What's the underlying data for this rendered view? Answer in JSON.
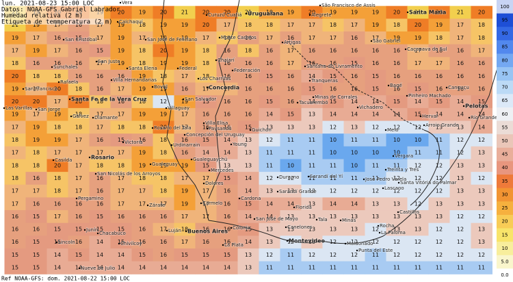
{
  "header": {
    "lines": [
      "lun. 2021-08-23 15:00 LOC",
      "Datos: NOAA-GFS  Gabriel Labrador",
      "Humedad relativa (2 m)",
      "Etiqueta de temmperatura (2 m)"
    ]
  },
  "footer": "Ref NOAA-GFS: dom. 2021-08-22 15:00 LOC",
  "legend": {
    "items": [
      {
        "label": "100",
        "color": "#c8d4f4"
      },
      {
        "label": "95",
        "color": "#1e4fd6"
      },
      {
        "label": "90",
        "color": "#3468e4"
      },
      {
        "label": "85",
        "color": "#5288ee"
      },
      {
        "label": "80",
        "color": "#74a8f2"
      },
      {
        "label": "75",
        "color": "#98c4f4"
      },
      {
        "label": "70",
        "color": "#bcdaf6"
      },
      {
        "label": "65",
        "color": "#dce9f8"
      },
      {
        "label": "60",
        "color": "#eef0f4"
      },
      {
        "label": "55",
        "color": "#ebdcd6"
      },
      {
        "label": "50",
        "color": "#eac6b8"
      },
      {
        "label": "45",
        "color": "#e9ae9a"
      },
      {
        "label": "40",
        "color": "#e8967e"
      },
      {
        "label": "35",
        "color": "#ee7a3a"
      },
      {
        "label": "30",
        "color": "#f29432"
      },
      {
        "label": "25",
        "color": "#f6b03e"
      },
      {
        "label": "20",
        "color": "#f8cc56"
      },
      {
        "label": "15",
        "color": "#f8e46a"
      },
      {
        "label": "10",
        "color": "#f8ee9c"
      },
      {
        "label": "5.0",
        "color": "#faf6cc"
      },
      {
        "label": "0.0",
        "color": "#ffffff"
      }
    ]
  },
  "temperatures": [
    [
      21,
      19,
      20,
      20,
      19,
      20,
      19,
      20,
      21,
      20,
      20,
      21,
      19,
      19,
      20,
      19,
      19,
      19,
      20,
      21,
      20,
      21,
      20
    ],
    [
      21,
      19,
      17,
      16,
      17,
      19,
      18,
      19,
      19,
      20,
      17,
      18,
      18,
      17,
      17,
      18,
      17,
      19,
      18,
      20,
      19,
      17,
      18
    ],
    [
      19,
      17,
      16,
      15,
      17,
      19,
      17,
      19,
      19,
      17,
      18,
      16,
      17,
      16,
      17,
      17,
      16,
      17,
      19,
      19,
      18,
      17,
      18
    ],
    [
      17,
      19,
      17,
      16,
      15,
      19,
      18,
      20,
      19,
      18,
      16,
      18,
      16,
      17,
      16,
      16,
      16,
      16,
      16,
      17,
      16,
      16,
      17
    ],
    [
      18,
      16,
      16,
      16,
      17,
      19,
      18,
      19,
      19,
      18,
      16,
      16,
      16,
      17,
      16,
      16,
      15,
      16,
      16,
      17,
      17,
      16,
      16
    ],
    [
      20,
      18,
      18,
      16,
      16,
      16,
      19,
      18,
      17,
      18,
      16,
      16,
      15,
      16,
      14,
      15,
      16,
      15,
      16,
      16,
      16,
      16,
      16
    ],
    [
      19,
      17,
      20,
      18,
      16,
      17,
      19,
      19,
      16,
      17,
      17,
      16,
      16,
      16,
      15,
      16,
      16,
      15,
      16,
      15,
      16,
      16,
      16
    ],
    [
      20,
      20,
      17,
      20,
      18,
      16,
      18,
      12,
      19,
      15,
      16,
      16,
      15,
      16,
      14,
      15,
      14,
      14,
      15,
      14,
      15,
      14,
      15
    ],
    [
      19,
      17,
      19,
      18,
      17,
      17,
      19,
      19,
      17,
      16,
      16,
      16,
      14,
      15,
      13,
      14,
      14,
      14,
      14,
      15,
      14,
      14,
      14
    ],
    [
      17,
      19,
      18,
      18,
      17,
      18,
      18,
      20,
      17,
      16,
      16,
      15,
      13,
      13,
      13,
      12,
      13,
      12,
      12,
      12,
      13,
      13,
      14
    ],
    [
      18,
      19,
      19,
      17,
      16,
      15,
      16,
      18,
      16,
      15,
      14,
      13,
      12,
      11,
      11,
      10,
      11,
      11,
      10,
      10,
      11,
      12,
      12
    ],
    [
      17,
      18,
      17,
      17,
      17,
      17,
      19,
      18,
      16,
      14,
      14,
      13,
      11,
      11,
      11,
      10,
      10,
      10,
      10,
      11,
      11,
      12,
      13
    ],
    [
      18,
      18,
      20,
      17,
      18,
      18,
      19,
      19,
      19,
      15,
      13,
      13,
      11,
      10,
      11,
      11,
      10,
      11,
      11,
      12,
      12,
      13,
      13
    ],
    [
      18,
      16,
      18,
      17,
      16,
      17,
      18,
      18,
      17,
      17,
      15,
      14,
      12,
      12,
      11,
      11,
      11,
      11,
      12,
      12,
      12,
      13,
      12
    ],
    [
      17,
      17,
      18,
      17,
      16,
      17,
      17,
      18,
      19,
      17,
      16,
      14,
      13,
      13,
      12,
      12,
      12,
      12,
      12,
      12,
      12,
      13,
      13
    ],
    [
      17,
      16,
      16,
      16,
      16,
      17,
      17,
      17,
      19,
      17,
      16,
      15,
      14,
      14,
      13,
      14,
      14,
      13,
      13,
      12,
      13,
      13,
      13
    ],
    [
      16,
      15,
      17,
      16,
      15,
      16,
      16,
      16,
      17,
      17,
      16,
      14,
      14,
      13,
      13,
      13,
      13,
      13,
      13,
      13,
      13,
      12,
      12
    ],
    [
      16,
      16,
      15,
      15,
      15,
      15,
      16,
      17,
      18,
      16,
      16,
      15,
      13,
      13,
      13,
      13,
      13,
      12,
      13,
      13,
      12,
      12,
      13
    ],
    [
      16,
      15,
      15,
      16,
      14,
      15,
      16,
      16,
      17,
      16,
      16,
      14,
      13,
      12,
      13,
      12,
      12,
      12,
      12,
      12,
      12,
      12,
      13
    ],
    [
      15,
      15,
      14,
      15,
      14,
      14,
      15,
      16,
      15,
      15,
      15,
      13,
      12,
      11,
      12,
      12,
      12,
      11,
      12,
      12,
      12,
      12,
      12
    ],
    [
      15,
      15,
      14,
      14,
      14,
      14,
      14,
      14,
      14,
      14,
      14,
      13,
      11,
      11,
      11,
      11,
      11,
      11,
      11,
      11,
      11,
      11,
      11
    ]
  ],
  "places": [
    "Vera",
    "Curuzú Cuatiá",
    "Uruguaiana",
    "Alegrete",
    "São Francisco de Assis",
    "Santa Maria",
    "Calchaquí",
    "San Cristóbal",
    "San José de Feliciano",
    "Monte Caseros",
    "Artigas",
    "São Gabriel",
    "Caçapava do Sul",
    "Sunchales",
    "San Justo",
    "Santa Elena",
    "Federal",
    "Chajarí",
    "Federación",
    "Santana do Livramento",
    "Rafaela",
    "Villa Hernandarias",
    "Los Charrúas",
    "Concordia",
    "Tranqueras",
    "Bagé",
    "Canguçu",
    "San Francisco",
    "Bovril",
    "Santa Fe de la Vera Cruz",
    "San Salvador",
    "Minas de Corrales",
    "Pinheiro Machado",
    "Pelotas",
    "Tacuarembó",
    "Vichadero",
    "Las Varillas",
    "San Jorge",
    "Villaguay",
    "Gálvez",
    "Diamante",
    "Herval",
    "Río Grande",
    "Villa Elisa",
    "Rosario del Tala",
    "Paysandú",
    "Guichón",
    "Melo",
    "Arroio Grande",
    "Concepción del Uruguay",
    "Victoria",
    "Young",
    "Urdinarrain",
    "Vergara",
    "Casilda",
    "Rosario",
    "Gualeguaychú",
    "Gualeguay",
    "Treinta y Tres",
    "Mercedes",
    "San Nicolás de los Arroyos",
    "Durazno",
    "Sarandí del Yí",
    "José Pedro Varela",
    "Santa Vitória do Palmar",
    "Dolores",
    "Lascano",
    "Sarandí Grande",
    "Cardona",
    "Pergamino",
    "Zárate",
    "Carmelo",
    "Florida",
    "Castillos",
    "San José de Mayo",
    "Tala",
    "Minas",
    "Rocha",
    "Colonia",
    "Canelones",
    "Junín",
    "Chacabuco",
    "Luján",
    "Buenos Aires",
    "La Paloma",
    "Lincoln",
    "Chivilcoy",
    "Montevideo",
    "Maldonado",
    "La Plata",
    "Punta del Este",
    "Nueve de Julio"
  ]
}
